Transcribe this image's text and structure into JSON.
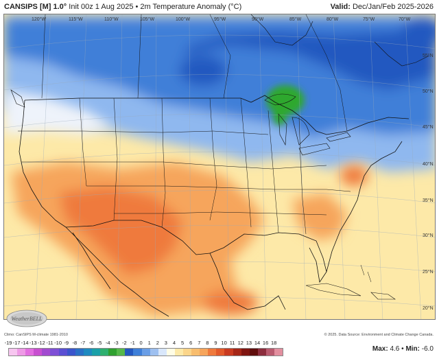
{
  "header": {
    "model": "CANSIPS [M] 1.0°",
    "subtitle": "Init 00z 1 Aug 2025 • 2m Temperature Anomaly (°C)",
    "valid_label": "Valid:",
    "valid_value": "Dec/Jan/Feb 2025-2026"
  },
  "map": {
    "longitude_labels": [
      "120°W",
      "115°W",
      "110°W",
      "105°W",
      "100°W",
      "95°W",
      "90°W",
      "85°W",
      "80°W",
      "75°W",
      "70°W"
    ],
    "latitude_labels": [
      "55°N",
      "50°N",
      "45°N",
      "40°N",
      "35°N",
      "30°N",
      "25°N",
      "20°N"
    ],
    "logo_text": "WeatherBELL",
    "colors": {
      "ocean_base": "#fde9a8",
      "warm": "#f6a55c",
      "hot": "#ef7a3d",
      "cool": "#8fb8ef",
      "cold": "#3f7fd8",
      "very_cold": "#2458c0",
      "green_anomaly": "#2fa82f"
    }
  },
  "footer": {
    "credit": "Climo: CanSIPS M-climate 1981-2010",
    "copyright": "© 2025. Data Source: Environment and Climate Change Canada."
  },
  "legend": {
    "labels": [
      "-19",
      "-17",
      "-14",
      "-13",
      "-12",
      "-11",
      "-10",
      "-9",
      "-8",
      "-7",
      "-6",
      "-5",
      "-4",
      "-3",
      "-2",
      "-1",
      "0",
      "1",
      "2",
      "3",
      "4",
      "5",
      "6",
      "7",
      "8",
      "9",
      "10",
      "11",
      "12",
      "13",
      "14",
      "16",
      "18"
    ],
    "colors": [
      "#f7c6f0",
      "#ee9ae6",
      "#e26ee0",
      "#c84fd0",
      "#a24ad0",
      "#7e4fd6",
      "#5b4fd3",
      "#3b55cc",
      "#2b70c6",
      "#1f8ac0",
      "#1aa0a8",
      "#2fb070",
      "#2fa02f",
      "#56b84a",
      "#2458c0",
      "#3f7fd8",
      "#6a9ee6",
      "#9ec0f0",
      "#d9e7fb",
      "#fffde6",
      "#fde9a8",
      "#fbd58a",
      "#f8bd6e",
      "#f6a55c",
      "#ef7a3d",
      "#e25a2b",
      "#c93a20",
      "#a52617",
      "#7f1510",
      "#5f0d0c",
      "#8c2d3d",
      "#b95b6f",
      "#e28f9f"
    ],
    "max_label": "Max:",
    "max_value": "4.6",
    "min_label": "Min:",
    "min_value": "-6.0"
  }
}
